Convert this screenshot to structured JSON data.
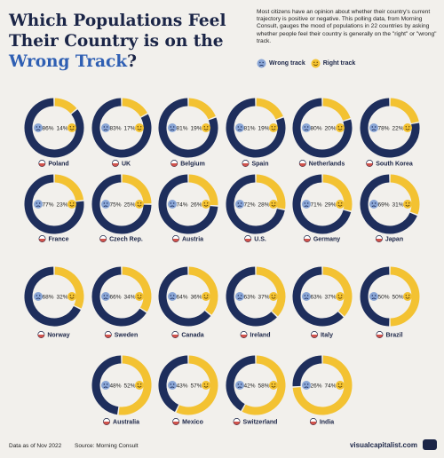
{
  "header": {
    "title_part1": "Which Populations Feel Their Country is on the ",
    "title_highlight": "Wrong Track",
    "title_part2": "?",
    "description": "Most citizens have an opinion about whether their country's current trajectory is positive or negative. This polling data, from Morning Consult, gauges the mood of populations in 22 countries by asking whether people feel their country is generally on the \"right\" or \"wrong\" track."
  },
  "legend": {
    "wrong_label": "Wrong track",
    "right_label": "Right track"
  },
  "colors": {
    "wrong": "#1e2e5c",
    "right": "#f3c232",
    "background": "#f2f0ec",
    "text": "#1b2547"
  },
  "chart_data": {
    "type": "donut",
    "series": [
      {
        "name": "Wrong track"
      },
      {
        "name": "Right track"
      }
    ],
    "countries": [
      {
        "name": "Poland",
        "wrong": 86,
        "right": 14
      },
      {
        "name": "UK",
        "wrong": 83,
        "right": 17
      },
      {
        "name": "Belgium",
        "wrong": 81,
        "right": 19
      },
      {
        "name": "Spain",
        "wrong": 81,
        "right": 19
      },
      {
        "name": "Netherlands",
        "wrong": 80,
        "right": 20
      },
      {
        "name": "South Korea",
        "wrong": 78,
        "right": 22
      },
      {
        "name": "France",
        "wrong": 77,
        "right": 23
      },
      {
        "name": "Czech Rep.",
        "wrong": 75,
        "right": 25
      },
      {
        "name": "Austria",
        "wrong": 74,
        "right": 26
      },
      {
        "name": "U.S.",
        "wrong": 72,
        "right": 28
      },
      {
        "name": "Germany",
        "wrong": 71,
        "right": 29
      },
      {
        "name": "Japan",
        "wrong": 69,
        "right": 31
      },
      {
        "name": "Norway",
        "wrong": 68,
        "right": 32
      },
      {
        "name": "Sweden",
        "wrong": 66,
        "right": 34
      },
      {
        "name": "Canada",
        "wrong": 64,
        "right": 36
      },
      {
        "name": "Ireland",
        "wrong": 63,
        "right": 37
      },
      {
        "name": "Italy",
        "wrong": 63,
        "right": 37
      },
      {
        "name": "Brazil",
        "wrong": 50,
        "right": 50
      },
      {
        "name": "Australia",
        "wrong": 48,
        "right": 52
      },
      {
        "name": "Mexico",
        "wrong": 43,
        "right": 57
      },
      {
        "name": "Switzerland",
        "wrong": 42,
        "right": 58
      },
      {
        "name": "India",
        "wrong": 26,
        "right": 74
      }
    ]
  },
  "footer": {
    "date_label": "Data as of Nov 2022",
    "source_label": "Source: Morning Consult",
    "brand": "visualcapitalist.com"
  }
}
